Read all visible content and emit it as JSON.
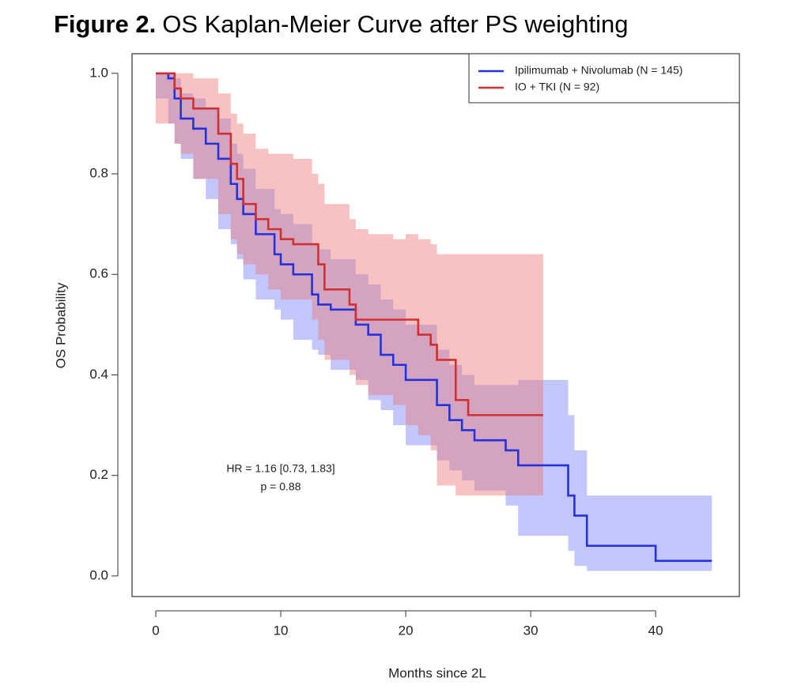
{
  "chart_data": {
    "type": "km",
    "title_label": "Figure 2.",
    "title": "OS Kaplan-Meier Curve after PS weighting",
    "xlabel": "Months since 2L",
    "ylabel": "OS Probability",
    "xlim": [
      -1.9,
      46.7
    ],
    "ylim": [
      -0.041,
      1.039
    ],
    "xticks": [
      0,
      10,
      20,
      30,
      40
    ],
    "yticks": [
      {
        "value": 0,
        "label": "0.0"
      },
      {
        "value": 0.2,
        "label": "0.2"
      },
      {
        "value": 0.4,
        "label": "0.4"
      },
      {
        "value": 0.6,
        "label": "0.6"
      },
      {
        "value": 0.8,
        "label": "0.8"
      },
      {
        "value": 1,
        "label": "1.0"
      }
    ],
    "legend": "top-right",
    "annotations": [
      "HR = 1.16 [0.73, 1.83]",
      "p = 0.88"
    ],
    "series": [
      {
        "name": "Ipilimumab + Nivolumab (N = 145)",
        "color": "#2233dd",
        "band_color": "rgba(110,120,245,0.42)",
        "x": [
          0,
          1,
          1.5,
          2,
          3,
          4,
          5,
          6,
          6.5,
          7,
          8,
          9.5,
          10,
          11,
          12.5,
          13,
          14,
          16,
          17,
          18,
          19,
          20,
          22.5,
          23.5,
          24.5,
          25.5,
          28,
          29,
          33,
          33.5,
          34.5,
          40,
          44.5
        ],
        "values": [
          1,
          0.99,
          0.95,
          0.91,
          0.89,
          0.86,
          0.83,
          0.78,
          0.75,
          0.72,
          0.68,
          0.64,
          0.62,
          0.6,
          0.56,
          0.54,
          0.53,
          0.5,
          0.48,
          0.44,
          0.42,
          0.39,
          0.34,
          0.31,
          0.29,
          0.27,
          0.25,
          0.22,
          0.16,
          0.12,
          0.06,
          0.03,
          0.03
        ],
        "lower": [
          1,
          0.95,
          0.9,
          0.86,
          0.83,
          0.79,
          0.75,
          0.69,
          0.66,
          0.63,
          0.59,
          0.55,
          0.53,
          0.51,
          0.47,
          0.45,
          0.44,
          0.41,
          0.39,
          0.35,
          0.33,
          0.3,
          0.26,
          0.23,
          0.21,
          0.19,
          0.17,
          0.14,
          0.08,
          0.05,
          0.02,
          0.01,
          0.01
        ],
        "upper": [
          1,
          1,
          0.99,
          0.96,
          0.95,
          0.93,
          0.91,
          0.86,
          0.84,
          0.81,
          0.77,
          0.73,
          0.72,
          0.7,
          0.66,
          0.65,
          0.63,
          0.6,
          0.58,
          0.55,
          0.53,
          0.5,
          0.45,
          0.42,
          0.4,
          0.38,
          0.38,
          0.39,
          0.32,
          0.25,
          0.16,
          0.16,
          0.16
        ]
      },
      {
        "name": "IO + TKI (N = 92)",
        "color": "#d03030",
        "band_color": "rgba(235,120,120,0.45)",
        "x": [
          0,
          1.5,
          2,
          3,
          5,
          6,
          6.5,
          7,
          8,
          9,
          10,
          11,
          12.5,
          13,
          13.5,
          15.5,
          16,
          17,
          19,
          20,
          21,
          22,
          22.5,
          24,
          25,
          31
        ],
        "values": [
          1,
          0.97,
          0.95,
          0.93,
          0.88,
          0.82,
          0.79,
          0.74,
          0.71,
          0.69,
          0.67,
          0.66,
          0.66,
          0.62,
          0.57,
          0.54,
          0.51,
          0.51,
          0.51,
          0.51,
          0.48,
          0.46,
          0.43,
          0.35,
          0.32,
          0.32
        ],
        "lower": [
          1,
          0.9,
          0.86,
          0.84,
          0.79,
          0.72,
          0.67,
          0.64,
          0.62,
          0.6,
          0.57,
          0.55,
          0.55,
          0.51,
          0.47,
          0.43,
          0.4,
          0.38,
          0.36,
          0.34,
          0.3,
          0.28,
          0.25,
          0.18,
          0.16,
          0.16
        ],
        "upper": [
          1,
          1,
          1,
          0.99,
          0.96,
          0.92,
          0.9,
          0.88,
          0.85,
          0.84,
          0.84,
          0.83,
          0.8,
          0.78,
          0.74,
          0.71,
          0.69,
          0.68,
          0.67,
          0.68,
          0.67,
          0.66,
          0.64,
          0.64,
          0.64,
          0.64
        ]
      }
    ]
  }
}
